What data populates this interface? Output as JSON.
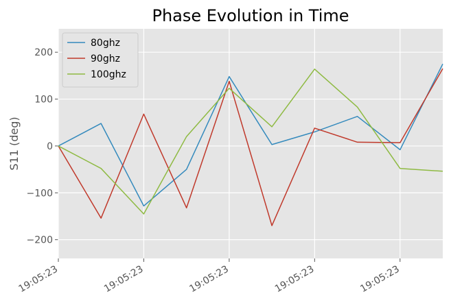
{
  "chart_data": {
    "type": "line",
    "title": "Phase Evolution in Time",
    "xlabel": "",
    "ylabel": "S11 (deg)",
    "ylim": [
      -240,
      250
    ],
    "y_ticks": [
      -200,
      -100,
      0,
      100,
      200
    ],
    "x": [
      0,
      1,
      2,
      3,
      4,
      5,
      6,
      7,
      8,
      9
    ],
    "x_ticks": [
      {
        "x": 0,
        "label": "19:05:23"
      },
      {
        "x": 2,
        "label": "19:05:23"
      },
      {
        "x": 4,
        "label": "19:05:23"
      },
      {
        "x": 6,
        "label": "19:05:23"
      },
      {
        "x": 8,
        "label": "19:05:23"
      }
    ],
    "series": [
      {
        "name": "80ghz",
        "color": "#348ABD",
        "values": [
          0,
          48,
          -128,
          -50,
          148,
          3,
          30,
          63,
          -8,
          175
        ]
      },
      {
        "name": "90ghz",
        "color": "#C0392B",
        "values": [
          0,
          -154,
          68,
          -132,
          138,
          -170,
          38,
          8,
          7,
          165
        ]
      },
      {
        "name": "100ghz",
        "color": "#8EBA42",
        "values": [
          0,
          -48,
          -145,
          20,
          123,
          41,
          164,
          83,
          -48,
          -54
        ]
      }
    ],
    "grid": true,
    "background": "#E5E5E5",
    "legend_placement": "top-left"
  }
}
